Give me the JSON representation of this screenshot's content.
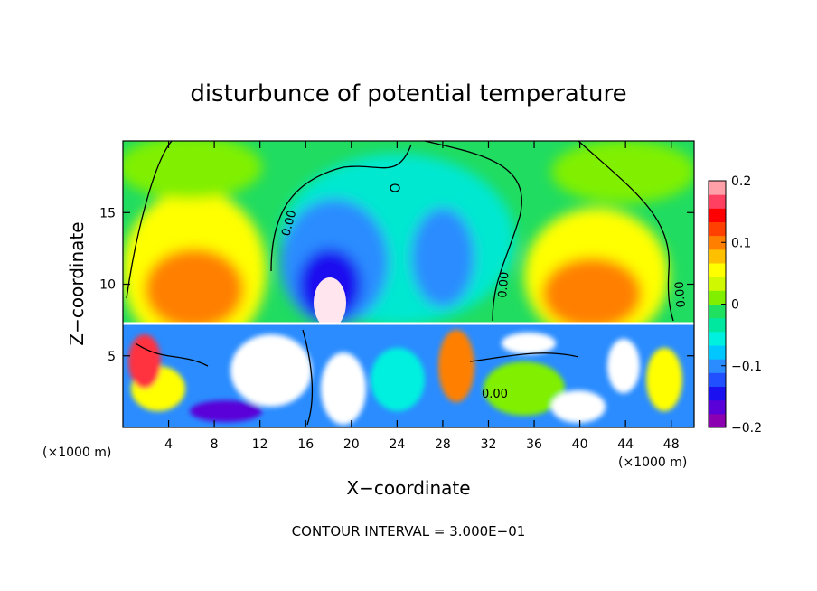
{
  "chart_data": {
    "type": "heatmap",
    "title": "disturbunce of potential temperature",
    "xlabel": "X−coordinate",
    "ylabel": "Z−coordinate",
    "x_unit_left": "(×1000 m)",
    "x_unit_right": "(×1000 m)",
    "xlim": [
      0,
      50
    ],
    "ylim": [
      0,
      20
    ],
    "x_ticks": [
      4,
      8,
      12,
      16,
      20,
      24,
      28,
      32,
      36,
      40,
      44,
      48
    ],
    "y_ticks": [
      5,
      10,
      15
    ],
    "colorbar": {
      "range": [
        -0.2,
        0.2
      ],
      "ticks": [
        {
          "value": 0.2,
          "label": "0.2"
        },
        {
          "value": 0.1,
          "label": "0.1"
        },
        {
          "value": 0,
          "label": "0"
        },
        {
          "value": -0.1,
          "label": "−0.1"
        },
        {
          "value": -0.2,
          "label": "−0.2"
        }
      ],
      "colors": [
        "#8b00b0",
        "#5a00d8",
        "#1a10f0",
        "#2050ff",
        "#2a8cff",
        "#00c8ff",
        "#00f0e0",
        "#00e8a0",
        "#20e060",
        "#80f000",
        "#d0f800",
        "#ffff00",
        "#ffc000",
        "#ff8000",
        "#ff4000",
        "#ff0000",
        "#ff4060",
        "#ffa0a8"
      ]
    },
    "contour_label": "0.00",
    "footer": "CONTOUR INTERVAL = 3.000E−01"
  }
}
